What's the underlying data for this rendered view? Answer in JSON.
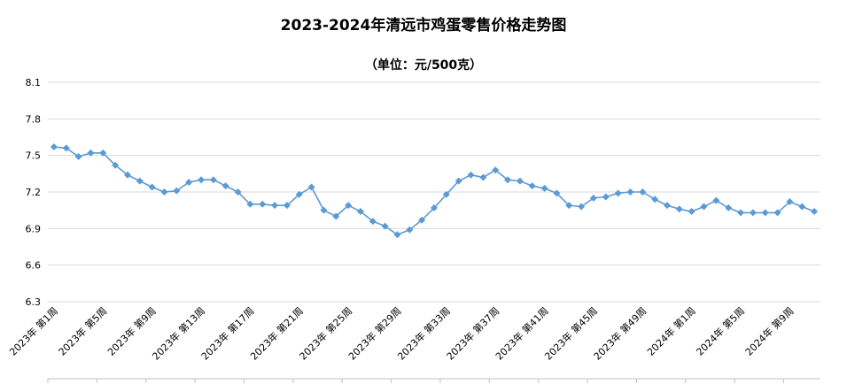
{
  "chart_data": {
    "type": "line",
    "title": "2023-2024年清远市鸡蛋零售价格走势图",
    "subtitle": "（单位：元/500克）",
    "xlabel": "",
    "ylabel": "",
    "ylim": [
      6.3,
      8.1
    ],
    "yticks": [
      "6.3",
      "6.6",
      "6.9",
      "7.2",
      "7.5",
      "7.8",
      "8.1"
    ],
    "ytick_values": [
      6.3,
      6.6,
      6.9,
      7.2,
      7.5,
      7.8,
      8.1
    ],
    "grid": "horizontal",
    "legend": "none",
    "colors": {
      "series": "#5b9bd5",
      "grid": "#d9d9d9",
      "axis": "#bfbfbf"
    },
    "categories": [
      "2023年 第1周",
      "2023年 第2周",
      "2023年 第3周",
      "2023年 第4周",
      "2023年 第5周",
      "2023年 第6周",
      "2023年 第7周",
      "2023年 第8周",
      "2023年 第9周",
      "2023年 第10周",
      "2023年 第11周",
      "2023年 第12周",
      "2023年 第13周",
      "2023年 第14周",
      "2023年 第15周",
      "2023年 第16周",
      "2023年 第17周",
      "2023年 第18周",
      "2023年 第19周",
      "2023年 第20周",
      "2023年 第21周",
      "2023年 第22周",
      "2023年 第23周",
      "2023年 第24周",
      "2023年 第25周",
      "2023年 第26周",
      "2023年 第27周",
      "2023年 第28周",
      "2023年 第29周",
      "2023年 第30周",
      "2023年 第31周",
      "2023年 第32周",
      "2023年 第33周",
      "2023年 第34周",
      "2023年 第35周",
      "2023年 第36周",
      "2023年 第37周",
      "2023年 第38周",
      "2023年 第39周",
      "2023年 第40周",
      "2023年 第41周",
      "2023年 第42周",
      "2023年 第43周",
      "2023年 第44周",
      "2023年 第45周",
      "2023年 第46周",
      "2023年 第47周",
      "2023年 第48周",
      "2023年 第49周",
      "2023年 第50周",
      "2023年 第51周",
      "2023年 第52周",
      "2024年 第1周",
      "2024年 第2周",
      "2024年 第3周",
      "2024年 第4周",
      "2024年 第5周",
      "2024年 第6周",
      "2024年 第7周",
      "2024年 第8周",
      "2024年 第9周",
      "2024年 第10周",
      "2024年 第11周"
    ],
    "tick_label_indices": [
      0,
      4,
      8,
      12,
      16,
      20,
      24,
      28,
      32,
      36,
      40,
      44,
      48,
      52,
      56,
      60
    ],
    "series": [
      {
        "values": [
          7.57,
          7.56,
          7.49,
          7.52,
          7.52,
          7.42,
          7.34,
          7.29,
          7.24,
          7.2,
          7.21,
          7.28,
          7.3,
          7.3,
          7.25,
          7.2,
          7.1,
          7.1,
          7.09,
          7.09,
          7.18,
          7.24,
          7.05,
          7.0,
          7.09,
          7.04,
          6.96,
          6.92,
          6.85,
          6.89,
          6.97,
          7.07,
          7.18,
          7.29,
          7.34,
          7.32,
          7.38,
          7.3,
          7.29,
          7.25,
          7.23,
          7.19,
          7.09,
          7.08,
          7.15,
          7.16,
          7.19,
          7.2,
          7.2,
          7.14,
          7.09,
          7.06,
          7.04,
          7.08,
          7.13,
          7.07,
          7.03,
          7.03,
          7.03,
          7.03,
          7.12,
          7.08,
          7.04
        ]
      }
    ]
  }
}
